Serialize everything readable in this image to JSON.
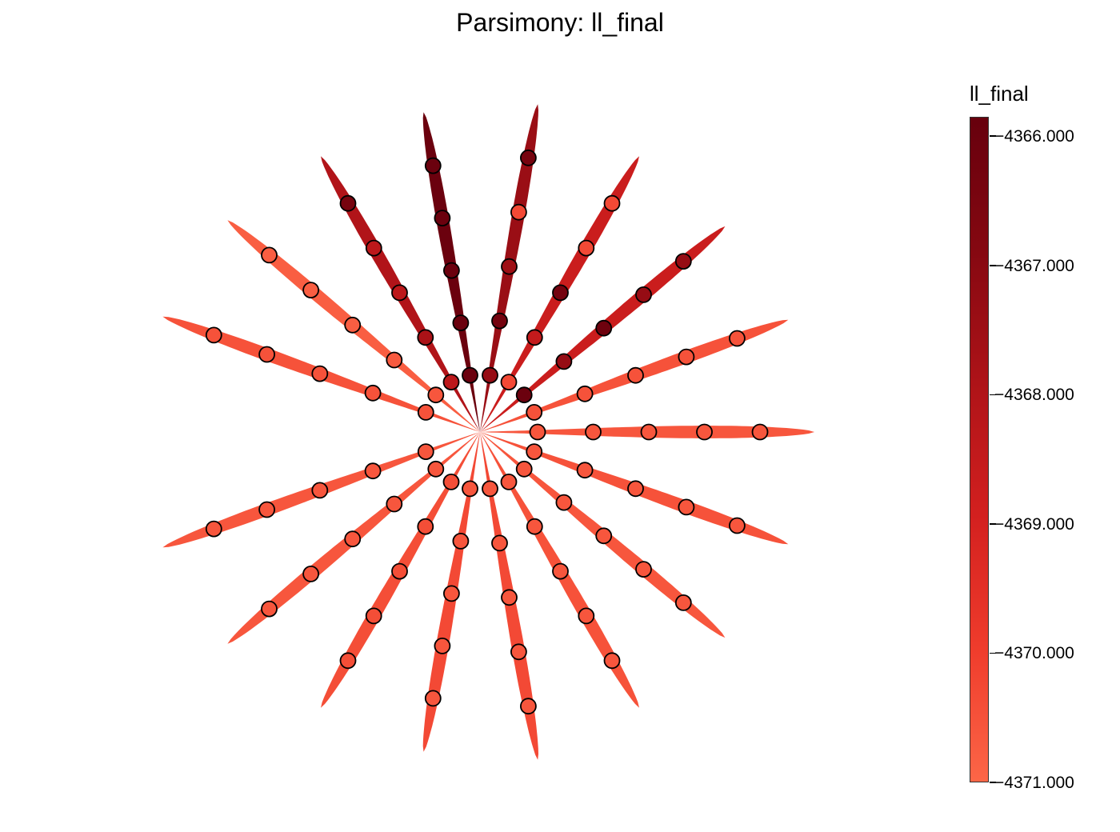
{
  "chart_data": {
    "type": "scatter",
    "title": "Parsimony: ll_final",
    "colorbar": {
      "label": "ll_final",
      "min": -4371.0,
      "max": -4365.85,
      "ticks": [
        -4366.0,
        -4367.0,
        -4368.0,
        -4369.0,
        -4370.0,
        -4371.0
      ],
      "tick_labels": [
        "−4366.000",
        "−4367.000",
        "−4368.000",
        "−4369.000",
        "−4370.000",
        "−4371.000"
      ],
      "colors": [
        "#fc6647",
        "#ef3c2c",
        "#d3201f",
        "#ae1318",
        "#850811",
        "#67000d"
      ]
    },
    "arms": [
      {
        "angle_deg": 0,
        "length": 418,
        "value": -4370.6,
        "points": [
          -4370.6,
          -4370.6,
          -4370.6,
          -4370.6,
          -4370.6
        ]
      },
      {
        "angle_deg": 20,
        "length": 410,
        "value": -4370.5,
        "points": [
          -4370.5,
          -4370.5,
          -4370.5,
          -4370.5,
          -4370.5
        ]
      },
      {
        "angle_deg": 40,
        "length": 400,
        "value": -4368.7,
        "points": [
          -4366.0,
          -4367.3,
          -4366.1,
          -4367.3,
          -4367.3
        ]
      },
      {
        "angle_deg": 60,
        "length": 398,
        "value": -4368.7,
        "points": [
          -4370.3,
          -4368.5,
          -4366.3,
          -4370.3,
          -4370.3
        ]
      },
      {
        "angle_deg": 80,
        "length": 416,
        "value": -4367.4,
        "points": [
          -4367.3,
          -4366.3,
          -4367.5,
          -4370.3,
          -4366.4
        ]
      },
      {
        "angle_deg": 100,
        "length": 406,
        "value": -4366.0,
        "points": [
          -4366.0,
          -4366.0,
          -4366.0,
          -4366.0,
          -4366.0
        ]
      },
      {
        "angle_deg": 120,
        "length": 398,
        "value": -4368.0,
        "points": [
          -4368.3,
          -4367.8,
          -4368.3,
          -4368.3,
          -4366.4
        ]
      },
      {
        "angle_deg": 140,
        "length": 412,
        "value": -4370.8,
        "points": [
          -4370.6,
          -4370.7,
          -4370.8,
          -4370.8,
          -4370.8
        ]
      },
      {
        "angle_deg": 160,
        "length": 422,
        "value": -4370.5,
        "points": [
          -4370.5,
          -4370.5,
          -4370.5,
          -4370.5,
          -4370.5
        ]
      },
      {
        "angle_deg": 200,
        "length": 422,
        "value": -4370.6,
        "points": [
          -4370.6,
          -4370.6,
          -4370.6,
          -4370.6,
          -4370.6
        ]
      },
      {
        "angle_deg": 220,
        "length": 412,
        "value": -4370.6,
        "points": [
          -4370.6,
          -4370.6,
          -4370.6,
          -4370.6,
          -4370.6
        ]
      },
      {
        "angle_deg": 240,
        "length": 398,
        "value": -4370.4,
        "points": [
          -4370.4,
          -4370.4,
          -4370.4,
          -4370.4,
          -4370.4
        ]
      },
      {
        "angle_deg": 260,
        "length": 406,
        "value": -4370.3,
        "points": [
          -4370.6,
          -4370.6,
          -4370.6,
          -4370.6,
          -4370.6
        ]
      },
      {
        "angle_deg": 280,
        "length": 416,
        "value": -4370.3,
        "points": [
          -4370.6,
          -4370.6,
          -4370.6,
          -4370.6,
          -4370.6
        ]
      },
      {
        "angle_deg": 300,
        "length": 398,
        "value": -4370.5,
        "points": [
          -4370.6,
          -4370.6,
          -4370.6,
          -4370.6,
          -4370.6
        ]
      },
      {
        "angle_deg": 320,
        "length": 400,
        "value": -4370.6,
        "points": [
          -4370.6,
          -4370.6,
          -4370.6,
          -4370.6,
          -4370.6
        ]
      },
      {
        "angle_deg": 340,
        "length": 410,
        "value": -4370.5,
        "points": [
          -4370.6,
          -4370.6,
          -4370.6,
          -4370.6,
          -4370.6
        ]
      }
    ]
  }
}
